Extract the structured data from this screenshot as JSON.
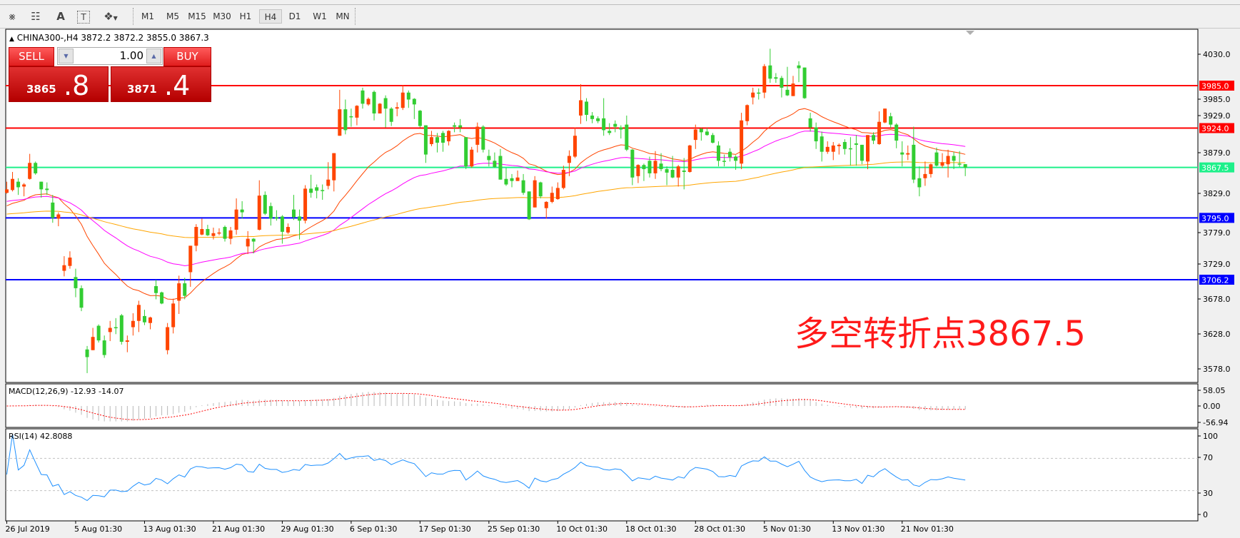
{
  "toolbar": {
    "icons": [
      "elliott-wave-icon",
      "fibonacci-fan-icon",
      "text-icon",
      "text-label-icon",
      "arrows-dropdown-icon"
    ],
    "timeframes": [
      "M1",
      "M5",
      "M15",
      "M30",
      "H1",
      "H4",
      "D1",
      "W1",
      "MN"
    ],
    "active_timeframe": "H4"
  },
  "chart": {
    "header": "CHINA300-,H4  3872.2 3872.2 3855.0 3867.3",
    "symbol": "CHINA300-",
    "timeframe": "H4",
    "ohlc": {
      "open": 3872.2,
      "high": 3872.2,
      "low": 3855.0,
      "close": 3867.3
    },
    "annotation": "多空转折点3867.5",
    "colors": {
      "bull": "#ff4500",
      "bear": "#32cd32",
      "ma_fast": "#ff4500",
      "ma_mid": "#ff00ff",
      "ma_slow": "#ffa500"
    }
  },
  "trade_panel": {
    "sell_label": "SELL",
    "buy_label": "BUY",
    "lot": "1.00",
    "sell_price_main": "3865",
    "sell_price_frac": ".8",
    "buy_price_main": "3871",
    "buy_price_frac": ".4"
  },
  "price_axis": {
    "ticks": [
      "4030.0",
      "3985.0",
      "3929.0",
      "3879.0",
      "3829.0",
      "3779.0",
      "3729.0",
      "3678.0",
      "3628.0",
      "3578.0"
    ]
  },
  "levels": [
    {
      "price": 3985.0,
      "label": "3985.0",
      "color": "#ff0000"
    },
    {
      "price": 3924.0,
      "label": "3924.0",
      "color": "#ff0000"
    },
    {
      "price": 3867.5,
      "label": "3867.5",
      "color": "#1ef08a"
    },
    {
      "price": 3795.0,
      "label": "3795.0",
      "color": "#0000ff"
    },
    {
      "price": 3706.2,
      "label": "3706.2",
      "color": "#0000ff"
    }
  ],
  "time_axis": [
    "26 Jul 2019",
    "5 Aug 01:30",
    "13 Aug 01:30",
    "21 Aug 01:30",
    "29 Aug 01:30",
    "6 Sep 01:30",
    "17 Sep 01:30",
    "25 Sep 01:30",
    "10 Oct 01:30",
    "18 Oct 01:30",
    "28 Oct 01:30",
    "5 Nov 01:30",
    "13 Nov 01:30",
    "21 Nov 01:30"
  ],
  "macd": {
    "title": "MACD(12,26,9) -12.93 -14.07",
    "ticks": [
      "58.05",
      "0.00",
      "-56.94"
    ],
    "range": [
      -56.94,
      58.05
    ]
  },
  "rsi": {
    "title": "RSI(14) 42.8088",
    "ticks": [
      "100",
      "70",
      "30",
      "0"
    ],
    "levels": [
      70,
      30
    ]
  },
  "chart_data": {
    "type": "candlestick",
    "title": "CHINA300-,H4",
    "ylim": [
      3565,
      4045
    ],
    "candles_ohlc": [
      [
        3831,
        3847,
        3830,
        3836
      ],
      [
        3835,
        3861,
        3833,
        3851
      ],
      [
        3847,
        3852,
        3828,
        3839
      ],
      [
        3840,
        3845,
        3826,
        3843
      ],
      [
        3851,
        3887,
        3850,
        3874
      ],
      [
        3874,
        3876,
        3857,
        3859
      ],
      [
        3847,
        3847,
        3824,
        3836
      ],
      [
        3837,
        3846,
        3828,
        3835
      ],
      [
        3817,
        3828,
        3788,
        3795
      ],
      [
        3794,
        3803,
        3783,
        3800
      ],
      [
        3719,
        3740,
        3711,
        3727
      ],
      [
        3726,
        3747,
        3722,
        3738
      ],
      [
        3710,
        3722,
        3681,
        3694
      ],
      [
        3694,
        3698,
        3661,
        3666
      ],
      [
        3606,
        3611,
        3572,
        3595
      ],
      [
        3605,
        3637,
        3605,
        3624
      ],
      [
        3640,
        3642,
        3616,
        3619
      ],
      [
        3619,
        3626,
        3594,
        3598
      ],
      [
        3631,
        3647,
        3618,
        3637
      ],
      [
        3638,
        3651,
        3628,
        3637
      ],
      [
        3655,
        3657,
        3613,
        3617
      ],
      [
        3617,
        3626,
        3602,
        3619
      ],
      [
        3638,
        3658,
        3626,
        3647
      ],
      [
        3647,
        3676,
        3631,
        3670
      ],
      [
        3654,
        3663,
        3641,
        3645
      ],
      [
        3644,
        3653,
        3635,
        3652
      ],
      [
        3697,
        3706,
        3678,
        3687
      ],
      [
        3688,
        3689,
        3671,
        3672
      ],
      [
        3605,
        3644,
        3599,
        3638
      ],
      [
        3638,
        3679,
        3629,
        3672
      ],
      [
        3676,
        3712,
        3657,
        3701
      ],
      [
        3701,
        3709,
        3678,
        3683
      ],
      [
        3717,
        3755,
        3696,
        3755
      ],
      [
        3755,
        3786,
        3747,
        3782
      ],
      [
        3771,
        3794,
        3770,
        3779
      ],
      [
        3779,
        3785,
        3769,
        3770
      ],
      [
        3769,
        3781,
        3764,
        3773
      ],
      [
        3773,
        3780,
        3770,
        3774
      ],
      [
        3782,
        3784,
        3761,
        3765
      ],
      [
        3765,
        3782,
        3757,
        3777
      ],
      [
        3778,
        3823,
        3771,
        3807
      ],
      [
        3807,
        3819,
        3794,
        3803
      ],
      [
        3754,
        3776,
        3743,
        3765
      ],
      [
        3765,
        3766,
        3744,
        3761
      ],
      [
        3778,
        3849,
        3777,
        3827
      ],
      [
        3828,
        3833,
        3799,
        3801
      ],
      [
        3812,
        3817,
        3784,
        3794
      ],
      [
        3796,
        3806,
        3791,
        3794
      ],
      [
        3797,
        3799,
        3758,
        3775
      ],
      [
        3774,
        3787,
        3772,
        3782
      ],
      [
        3807,
        3828,
        3792,
        3796
      ],
      [
        3797,
        3807,
        3764,
        3791
      ],
      [
        3791,
        3842,
        3787,
        3837
      ],
      [
        3837,
        3857,
        3824,
        3831
      ],
      [
        3839,
        3843,
        3823,
        3834
      ],
      [
        3835,
        3843,
        3821,
        3834
      ],
      [
        3841,
        3875,
        3836,
        3850
      ],
      [
        3849,
        3888,
        3833,
        3888
      ],
      [
        3913,
        3979,
        3913,
        3951
      ],
      [
        3951,
        3965,
        3915,
        3921
      ],
      [
        3941,
        3952,
        3926,
        3940
      ],
      [
        3939,
        3957,
        3928,
        3956
      ],
      [
        3978,
        3982,
        3952,
        3959
      ],
      [
        3958,
        3968,
        3956,
        3966
      ],
      [
        3976,
        3978,
        3935,
        3945
      ],
      [
        3945,
        3960,
        3945,
        3959
      ],
      [
        3967,
        3971,
        3925,
        3952
      ],
      [
        3952,
        3954,
        3927,
        3933
      ],
      [
        3952,
        3961,
        3941,
        3954
      ],
      [
        3953,
        3986,
        3950,
        3975
      ],
      [
        3975,
        3978,
        3953,
        3965
      ],
      [
        3966,
        3967,
        3937,
        3958
      ],
      [
        3949,
        3950,
        3925,
        3927
      ],
      [
        3928,
        3928,
        3874,
        3886
      ],
      [
        3901,
        3920,
        3898,
        3911
      ],
      [
        3911,
        3917,
        3889,
        3903
      ],
      [
        3917,
        3920,
        3890,
        3903
      ],
      [
        3905,
        3921,
        3899,
        3920
      ],
      [
        3928,
        3932,
        3918,
        3926
      ],
      [
        3928,
        3937,
        3918,
        3925
      ],
      [
        3911,
        3911,
        3865,
        3869
      ],
      [
        3869,
        3897,
        3867,
        3893
      ],
      [
        3900,
        3932,
        3889,
        3926
      ],
      [
        3926,
        3928,
        3889,
        3893
      ],
      [
        3884,
        3893,
        3869,
        3878
      ],
      [
        3877,
        3889,
        3867,
        3868
      ],
      [
        3884,
        3894,
        3850,
        3850
      ],
      [
        3851,
        3867,
        3841,
        3843
      ],
      [
        3852,
        3858,
        3839,
        3848
      ],
      [
        3848,
        3863,
        3848,
        3853
      ],
      [
        3849,
        3858,
        3828,
        3831
      ],
      [
        3833,
        3833,
        3792,
        3793
      ],
      [
        3810,
        3855,
        3810,
        3849
      ],
      [
        3846,
        3847,
        3823,
        3826
      ],
      [
        3809,
        3819,
        3794,
        3818
      ],
      [
        3818,
        3840,
        3816,
        3831
      ],
      [
        3822,
        3846,
        3821,
        3838
      ],
      [
        3838,
        3870,
        3836,
        3864
      ],
      [
        3874,
        3892,
        3855,
        3884
      ],
      [
        3883,
        3925,
        3881,
        3913
      ],
      [
        3942,
        3987,
        3930,
        3964
      ],
      [
        3962,
        3967,
        3934,
        3943
      ],
      [
        3942,
        3947,
        3931,
        3937
      ],
      [
        3938,
        3941,
        3931,
        3934
      ],
      [
        3938,
        3967,
        3913,
        3921
      ],
      [
        3920,
        3931,
        3914,
        3917
      ],
      [
        3930,
        3935,
        3918,
        3926
      ],
      [
        3925,
        3928,
        3909,
        3922
      ],
      [
        3929,
        3942,
        3891,
        3893
      ],
      [
        3893,
        3894,
        3842,
        3853
      ],
      [
        3855,
        3872,
        3845,
        3871
      ],
      [
        3871,
        3873,
        3848,
        3865
      ],
      [
        3877,
        3883,
        3853,
        3859
      ],
      [
        3859,
        3891,
        3851,
        3877
      ],
      [
        3873,
        3888,
        3862,
        3865
      ],
      [
        3865,
        3869,
        3842,
        3860
      ],
      [
        3864,
        3884,
        3852,
        3853
      ],
      [
        3853,
        3871,
        3840,
        3869
      ],
      [
        3863,
        3881,
        3836,
        3861
      ],
      [
        3861,
        3900,
        3860,
        3899
      ],
      [
        3907,
        3929,
        3894,
        3922
      ],
      [
        3923,
        3924,
        3906,
        3918
      ],
      [
        3919,
        3924,
        3913,
        3914
      ],
      [
        3914,
        3917,
        3902,
        3903
      ],
      [
        3899,
        3905,
        3869,
        3877
      ],
      [
        3877,
        3886,
        3869,
        3876
      ],
      [
        3890,
        3895,
        3876,
        3882
      ],
      [
        3883,
        3885,
        3864,
        3877
      ],
      [
        3873,
        3946,
        3865,
        3935
      ],
      [
        3934,
        3958,
        3928,
        3957
      ],
      [
        3968,
        3982,
        3958,
        3975
      ],
      [
        3975,
        3981,
        3965,
        3974
      ],
      [
        3975,
        4016,
        3967,
        4013
      ],
      [
        4014,
        4038,
        3989,
        3995
      ],
      [
        3997,
        4003,
        3989,
        3995
      ],
      [
        3996,
        3999,
        3968,
        3982
      ],
      [
        3979,
        4012,
        3970,
        3971
      ],
      [
        3970,
        3999,
        3970,
        3988
      ],
      [
        4014,
        4020,
        3990,
        4010
      ],
      [
        4011,
        4011,
        3966,
        3967
      ],
      [
        3938,
        3946,
        3919,
        3925
      ],
      [
        3925,
        3932,
        3894,
        3905
      ],
      [
        3912,
        3919,
        3876,
        3890
      ],
      [
        3890,
        3905,
        3887,
        3897
      ],
      [
        3890,
        3904,
        3878,
        3899
      ],
      [
        3898,
        3902,
        3886,
        3900
      ],
      [
        3904,
        3908,
        3886,
        3894
      ],
      [
        3895,
        3911,
        3870,
        3894
      ],
      [
        3902,
        3914,
        3870,
        3900
      ],
      [
        3900,
        3900,
        3872,
        3877
      ],
      [
        3876,
        3914,
        3865,
        3914
      ],
      [
        3914,
        3918,
        3901,
        3906
      ],
      [
        3901,
        3948,
        3900,
        3933
      ],
      [
        3932,
        3952,
        3931,
        3952
      ],
      [
        3941,
        3946,
        3924,
        3929
      ],
      [
        3929,
        3931,
        3895,
        3906
      ],
      [
        3889,
        3905,
        3869,
        3886
      ],
      [
        3886,
        3899,
        3878,
        3888
      ],
      [
        3900,
        3926,
        3845,
        3850
      ],
      [
        3852,
        3869,
        3826,
        3839
      ],
      [
        3852,
        3876,
        3841,
        3858
      ],
      [
        3858,
        3873,
        3853,
        3872
      ],
      [
        3889,
        3896,
        3869,
        3870
      ],
      [
        3870,
        3888,
        3867,
        3875
      ],
      [
        3872,
        3893,
        3853,
        3884
      ],
      [
        3884,
        3890,
        3865,
        3877
      ],
      [
        3873,
        3891,
        3868,
        3872
      ],
      [
        3872.2,
        3872.2,
        3855.0,
        3867.3
      ]
    ]
  }
}
